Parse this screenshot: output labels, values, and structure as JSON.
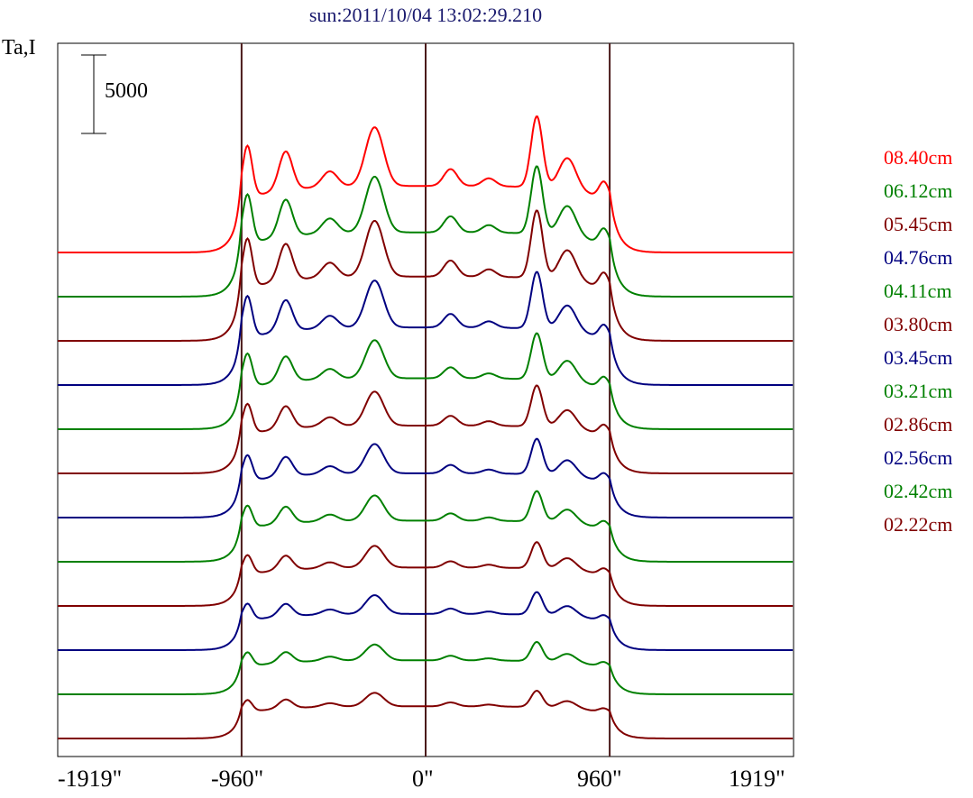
{
  "title": "sun:2011/10/04 13:02:29.210",
  "ylabel": "Ta,I",
  "scale_bar_label": "5000",
  "x_ticks": [
    "-1919\"",
    "-960\"",
    "0\"",
    "960\"",
    "1919\""
  ],
  "colors": {
    "axes": "#000000",
    "limb_lines": "#4a1a1a",
    "title": "#1a1a6e"
  },
  "chart_data": {
    "type": "line",
    "title": "sun:2011/10/04 13:02:29.210",
    "ylabel": "Ta,I",
    "xlim": [
      -1919,
      1919
    ],
    "x_ticks": [
      -1919,
      -960,
      0,
      960,
      1919
    ],
    "vertical_lines": [
      -960,
      0,
      960
    ],
    "scale_bar": {
      "value": 5000,
      "label": "5000"
    },
    "layout": "stacked offset profiles (one per wavelength), 08.40cm on top",
    "series": [
      {
        "name": "08.40cm",
        "color": "#ff0000",
        "baseline": 11,
        "limb_peak": 5,
        "peak_scale": 1.0
      },
      {
        "name": "06.12cm",
        "color": "#008000",
        "baseline": 10,
        "limb_peak": 6,
        "peak_scale": 0.95
      },
      {
        "name": "05.45cm",
        "color": "#800000",
        "baseline": 9,
        "limb_peak": 7,
        "peak_scale": 0.95
      },
      {
        "name": "04.76cm",
        "color": "#000080",
        "baseline": 8,
        "limb_peak": 8,
        "peak_scale": 0.8
      },
      {
        "name": "04.11cm",
        "color": "#008000",
        "baseline": 7,
        "limb_peak": 8,
        "peak_scale": 0.65
      },
      {
        "name": "03.80cm",
        "color": "#800000",
        "baseline": 6,
        "limb_peak": 8,
        "peak_scale": 0.58
      },
      {
        "name": "03.45cm",
        "color": "#000080",
        "baseline": 5,
        "limb_peak": 8,
        "peak_scale": 0.5
      },
      {
        "name": "03.21cm",
        "color": "#008000",
        "baseline": 4,
        "limb_peak": 7,
        "peak_scale": 0.43
      },
      {
        "name": "02.86cm",
        "color": "#800000",
        "baseline": 3,
        "limb_peak": 6,
        "peak_scale": 0.37
      },
      {
        "name": "02.56cm",
        "color": "#000080",
        "baseline": 2,
        "limb_peak": 5,
        "peak_scale": 0.32
      },
      {
        "name": "02.42cm",
        "color": "#008000",
        "baseline": 1,
        "limb_peak": 4,
        "peak_scale": 0.27
      },
      {
        "name": "02.22cm",
        "color": "#800000",
        "baseline": 0,
        "limb_peak": 3,
        "peak_scale": 0.23
      }
    ],
    "features": [
      {
        "x": -930,
        "amp": 4.0,
        "width": 25
      },
      {
        "x": -730,
        "amp": 3.0,
        "width": 35
      },
      {
        "x": -500,
        "amp": 1.2,
        "width": 40
      },
      {
        "x": -300,
        "amp": 0.8,
        "width": 40
      },
      {
        "x": -260,
        "amp": 4.0,
        "width": 45
      },
      {
        "x": 130,
        "amp": 1.3,
        "width": 35
      },
      {
        "x": 330,
        "amp": 0.6,
        "width": 35
      },
      {
        "x": 580,
        "amp": 5.5,
        "width": 30
      },
      {
        "x": 740,
        "amp": 2.5,
        "width": 45
      }
    ]
  }
}
